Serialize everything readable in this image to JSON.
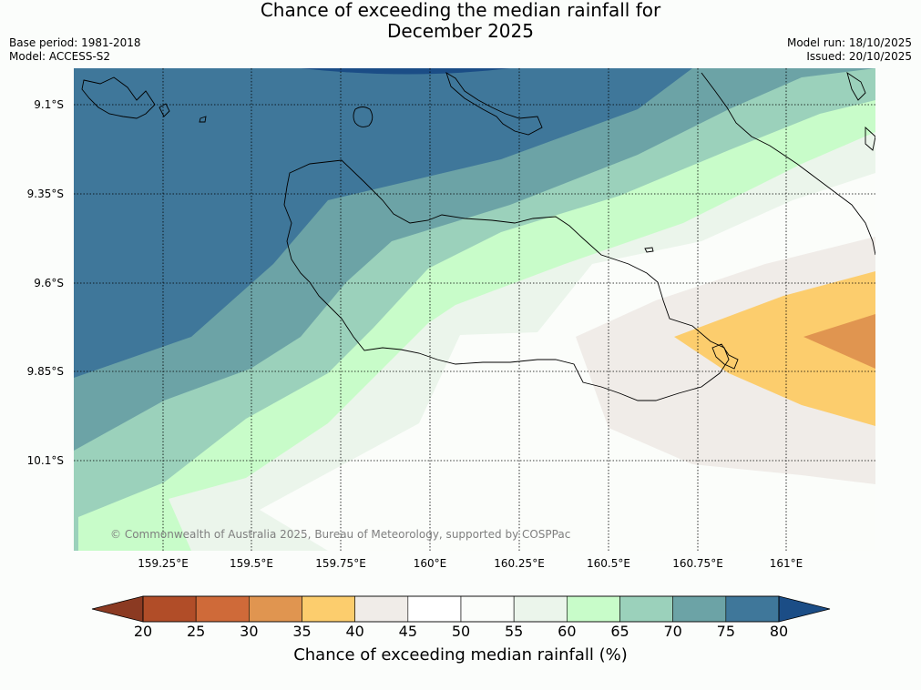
{
  "title": {
    "line1": "Chance of exceeding the median rainfall for",
    "line2": "December 2025"
  },
  "meta_left": {
    "base_period": "Base period: 1981-2018",
    "model": "Model: ACCESS-S2"
  },
  "meta_right": {
    "model_run": "Model run: 18/10/2025",
    "issued": "Issued: 20/10/2025"
  },
  "map": {
    "lat_labels": [
      "9.1°S",
      "9.35°S",
      "9.6°S",
      "9.85°S",
      "10.1°S"
    ],
    "lon_labels": [
      "159.25°E",
      "159.5°E",
      "159.75°E",
      "160°E",
      "160.25°E",
      "160.5°E",
      "160.75°E",
      "161°E"
    ],
    "copyright": "© Commonwealth of Australia 2025, Bureau of Meteorology, supported by COSPPac"
  },
  "colorbar": {
    "labels": [
      "20",
      "25",
      "30",
      "35",
      "40",
      "45",
      "50",
      "55",
      "60",
      "65",
      "70",
      "75",
      "80"
    ],
    "colors": [
      "#b14d28",
      "#cf6a39",
      "#e09550",
      "#fccd6d",
      "#f0ece8",
      "#ffffff",
      "#fbfdfa",
      "#ebf5eb",
      "#c8fcc9",
      "#9bd1bb",
      "#6ca3a6",
      "#3f779a"
    ],
    "low_color": "#8b3a22",
    "high_color": "#1b4d86",
    "title": "Chance of exceeding median rainfall (%)"
  }
}
